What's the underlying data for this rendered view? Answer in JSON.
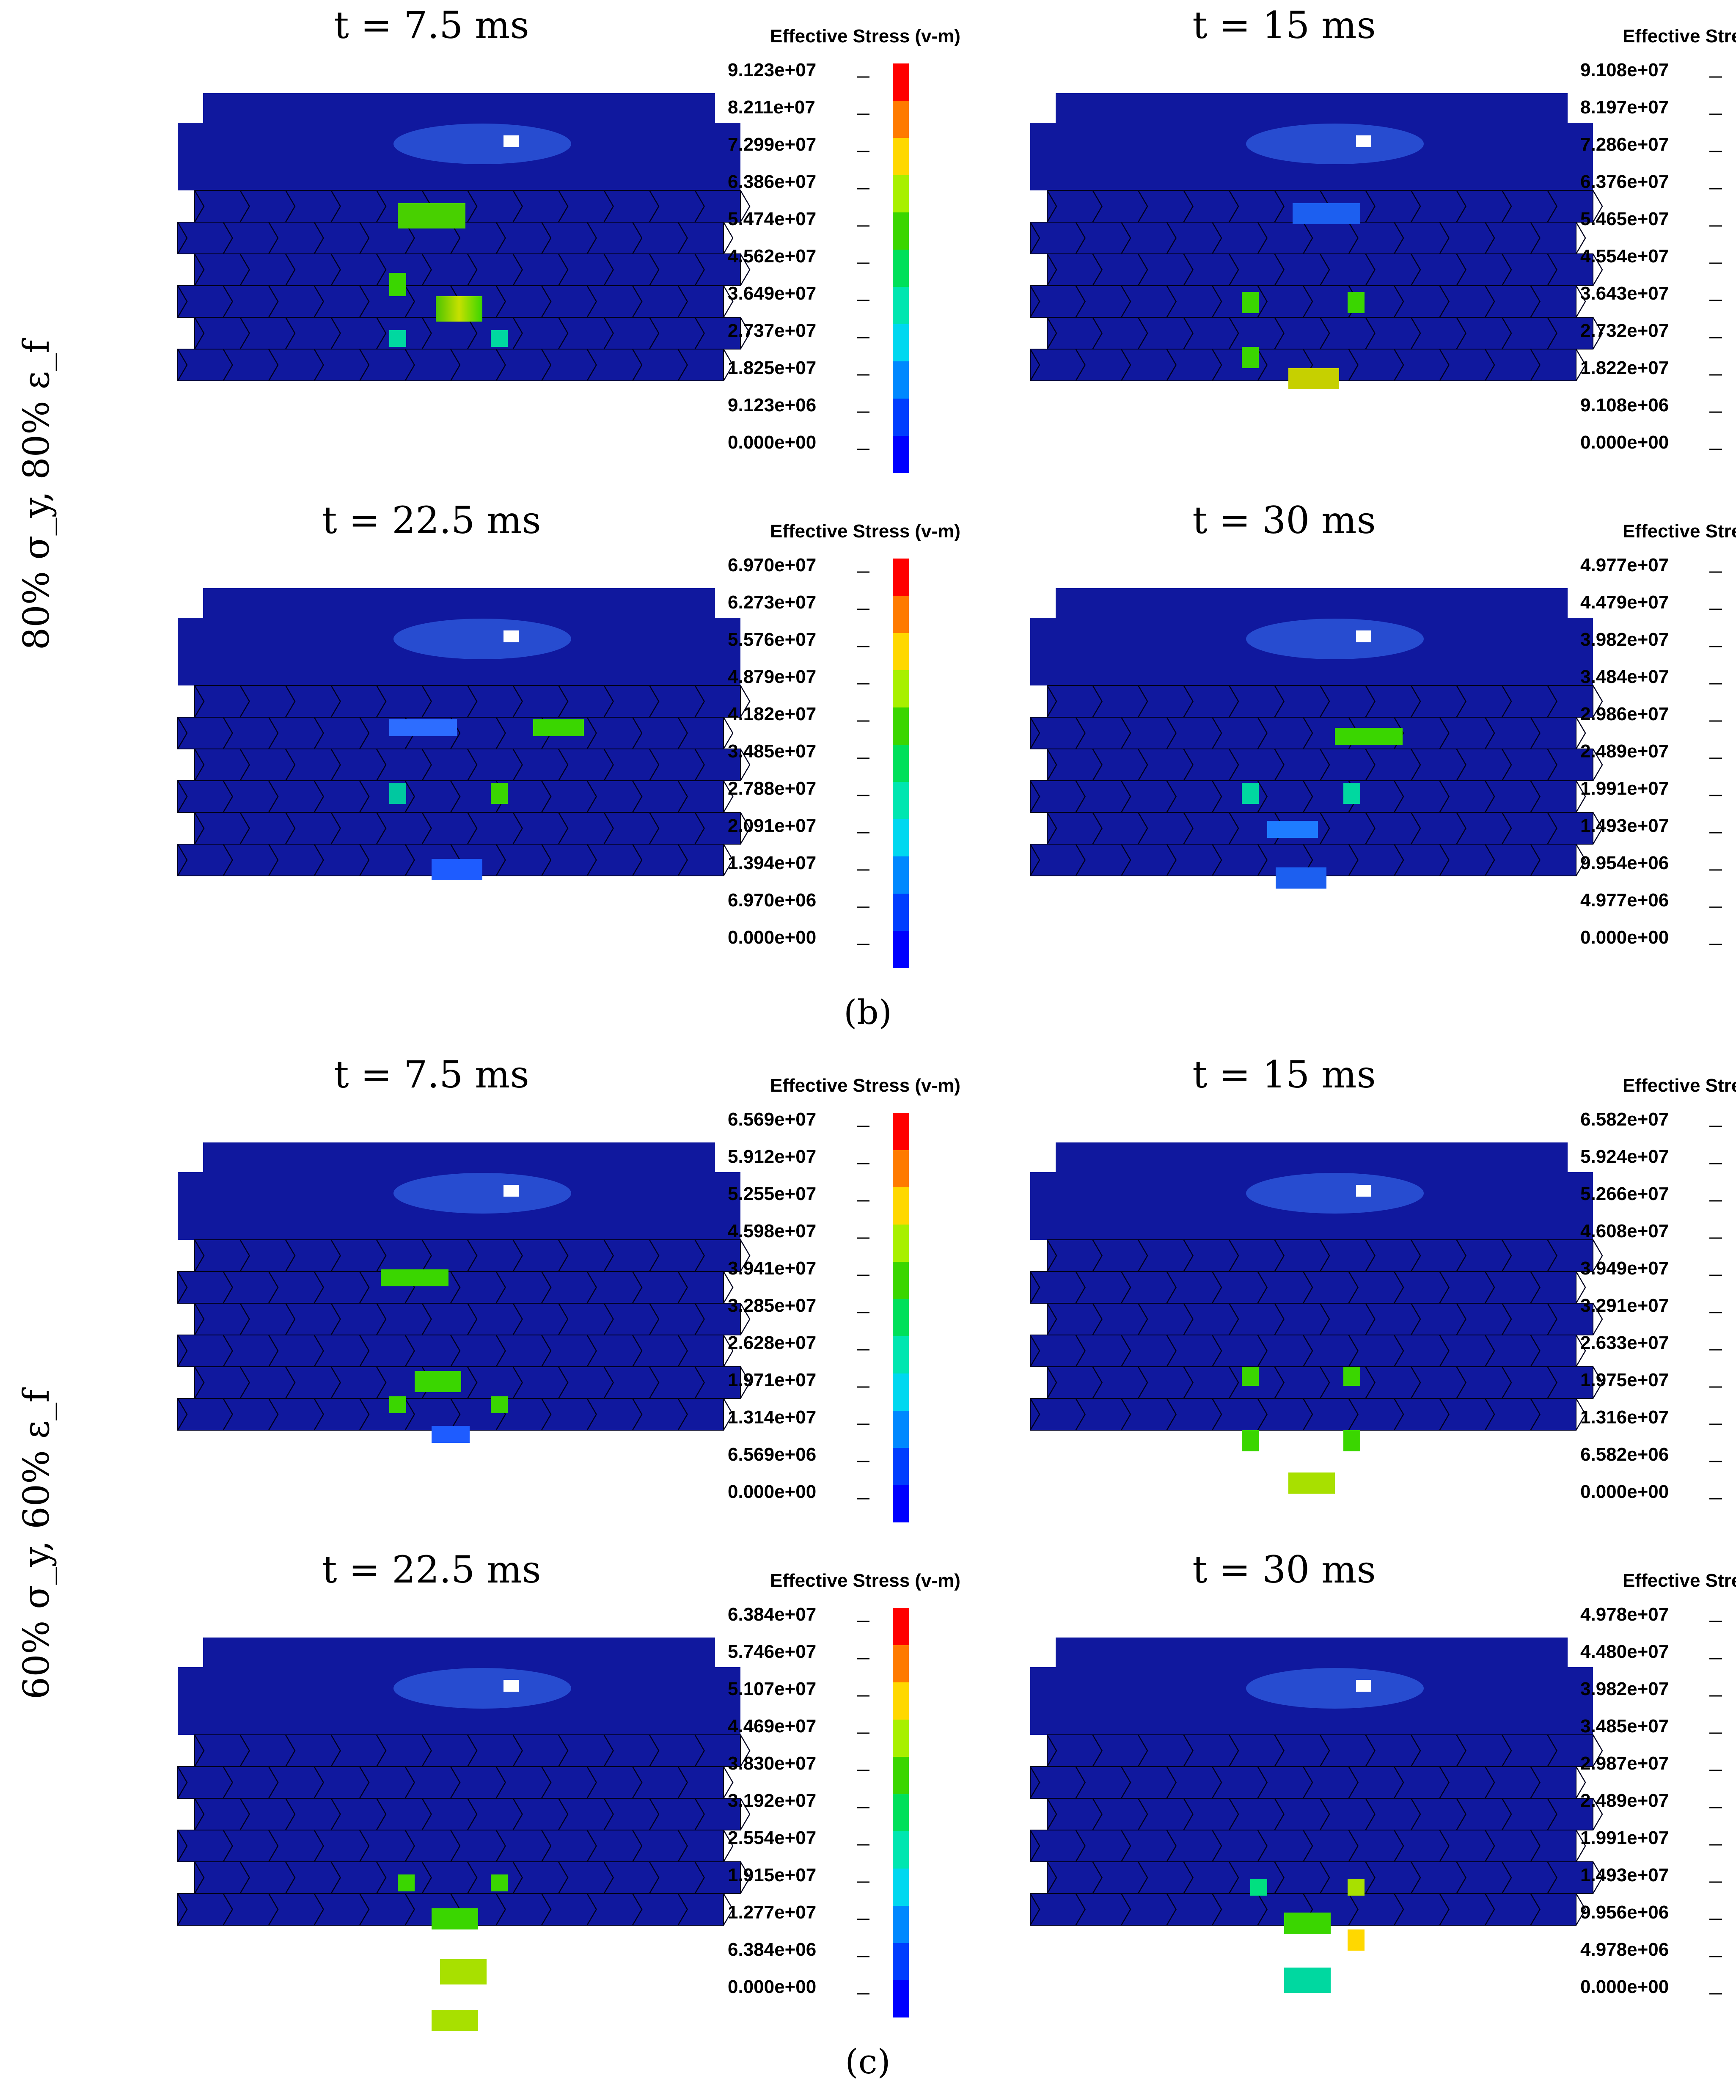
{
  "figure": {
    "groups": [
      {
        "caption_label": "b",
        "row_label": "80% σ_y, 80% ε_f",
        "panels": [
          {
            "time_label": "t = 7.5 ms",
            "legend_title": "Effective Stress (v-m)",
            "ticks": [
              "9.123e+07",
              "8.211e+07",
              "7.299e+07",
              "6.386e+07",
              "5.474e+07",
              "4.562e+07",
              "3.649e+07",
              "2.737e+07",
              "1.825e+07",
              "9.123e+06",
              "0.000e+00"
            ]
          },
          {
            "time_label": "t = 15 ms",
            "legend_title": "Effective Stress (v-m)",
            "ticks": [
              "9.108e+07",
              "8.197e+07",
              "7.286e+07",
              "6.376e+07",
              "5.465e+07",
              "4.554e+07",
              "3.643e+07",
              "2.732e+07",
              "1.822e+07",
              "9.108e+06",
              "0.000e+00"
            ]
          },
          {
            "time_label": "t = 22.5 ms",
            "legend_title": "Effective Stress (v-m)",
            "ticks": [
              "6.970e+07",
              "6.273e+07",
              "5.576e+07",
              "4.879e+07",
              "4.182e+07",
              "3.485e+07",
              "2.788e+07",
              "2.091e+07",
              "1.394e+07",
              "6.970e+06",
              "0.000e+00"
            ]
          },
          {
            "time_label": "t = 30 ms",
            "legend_title": "Effective Stress (v-m)",
            "ticks": [
              "4.977e+07",
              "4.479e+07",
              "3.982e+07",
              "3.484e+07",
              "2.986e+07",
              "2.489e+07",
              "1.991e+07",
              "1.493e+07",
              "9.954e+06",
              "4.977e+06",
              "0.000e+00"
            ]
          }
        ]
      },
      {
        "caption_label": "c",
        "row_label": "60% σ_y, 60% ε_f",
        "panels": [
          {
            "time_label": "t = 7.5 ms",
            "legend_title": "Effective Stress (v-m)",
            "ticks": [
              "6.569e+07",
              "5.912e+07",
              "5.255e+07",
              "4.598e+07",
              "3.941e+07",
              "3.285e+07",
              "2.628e+07",
              "1.971e+07",
              "1.314e+07",
              "6.569e+06",
              "0.000e+00"
            ]
          },
          {
            "time_label": "t = 15 ms",
            "legend_title": "Effective Stress (v-m)",
            "ticks": [
              "6.582e+07",
              "5.924e+07",
              "5.266e+07",
              "4.608e+07",
              "3.949e+07",
              "3.291e+07",
              "2.633e+07",
              "1.975e+07",
              "1.316e+07",
              "6.582e+06",
              "0.000e+00"
            ]
          },
          {
            "time_label": "t = 22.5 ms",
            "legend_title": "Effective Stress (v-m)",
            "ticks": [
              "6.384e+07",
              "5.746e+07",
              "5.107e+07",
              "4.469e+07",
              "3.830e+07",
              "3.192e+07",
              "2.554e+07",
              "1.915e+07",
              "1.277e+07",
              "6.384e+06",
              "0.000e+00"
            ]
          },
          {
            "time_label": "t = 30 ms",
            "legend_title": "Effective Stress (v-m)",
            "ticks": [
              "4.978e+07",
              "4.480e+07",
              "3.982e+07",
              "3.485e+07",
              "2.987e+07",
              "2.489e+07",
              "1.991e+07",
              "1.493e+07",
              "9.956e+06",
              "4.978e+06",
              "0.000e+00"
            ]
          }
        ]
      }
    ],
    "colorbar_colors": [
      "#ff0000",
      "#ff7a00",
      "#ffd800",
      "#a8f000",
      "#3ad600",
      "#00e05a",
      "#00e6b0",
      "#00d8f0",
      "#0088ff",
      "#003dff",
      "#0000ff"
    ],
    "model_color": "#10189e",
    "model_edge_color": "#00001e"
  }
}
